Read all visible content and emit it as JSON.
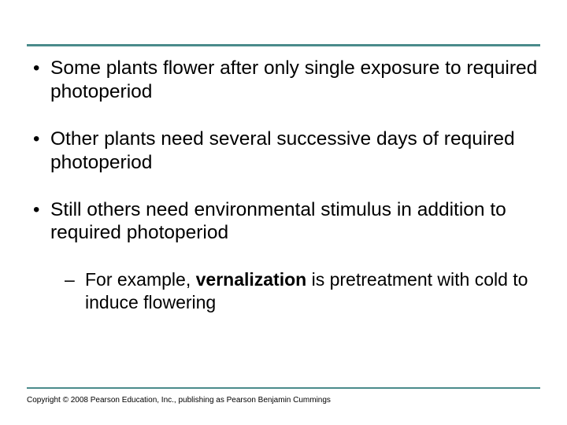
{
  "rule_color": "#4a8b8b",
  "bullets": [
    {
      "text": "Some plants flower after only single exposure to required photoperiod"
    },
    {
      "text": "Other plants need several successive days of required photoperiod"
    },
    {
      "text_before": "Still others need environmental stimulus in addition to required photoperiod",
      "sub": {
        "prefix": "For example, ",
        "bold": "vernalization",
        "suffix": " is pretreatment with cold to induce flowering"
      }
    }
  ],
  "copyright": "Copyright © 2008 Pearson Education, Inc., publishing as Pearson Benjamin Cummings",
  "body_fontsize": 24.5,
  "sub_fontsize": 23,
  "copyright_fontsize": 10,
  "text_color": "#000000",
  "background_color": "#ffffff"
}
